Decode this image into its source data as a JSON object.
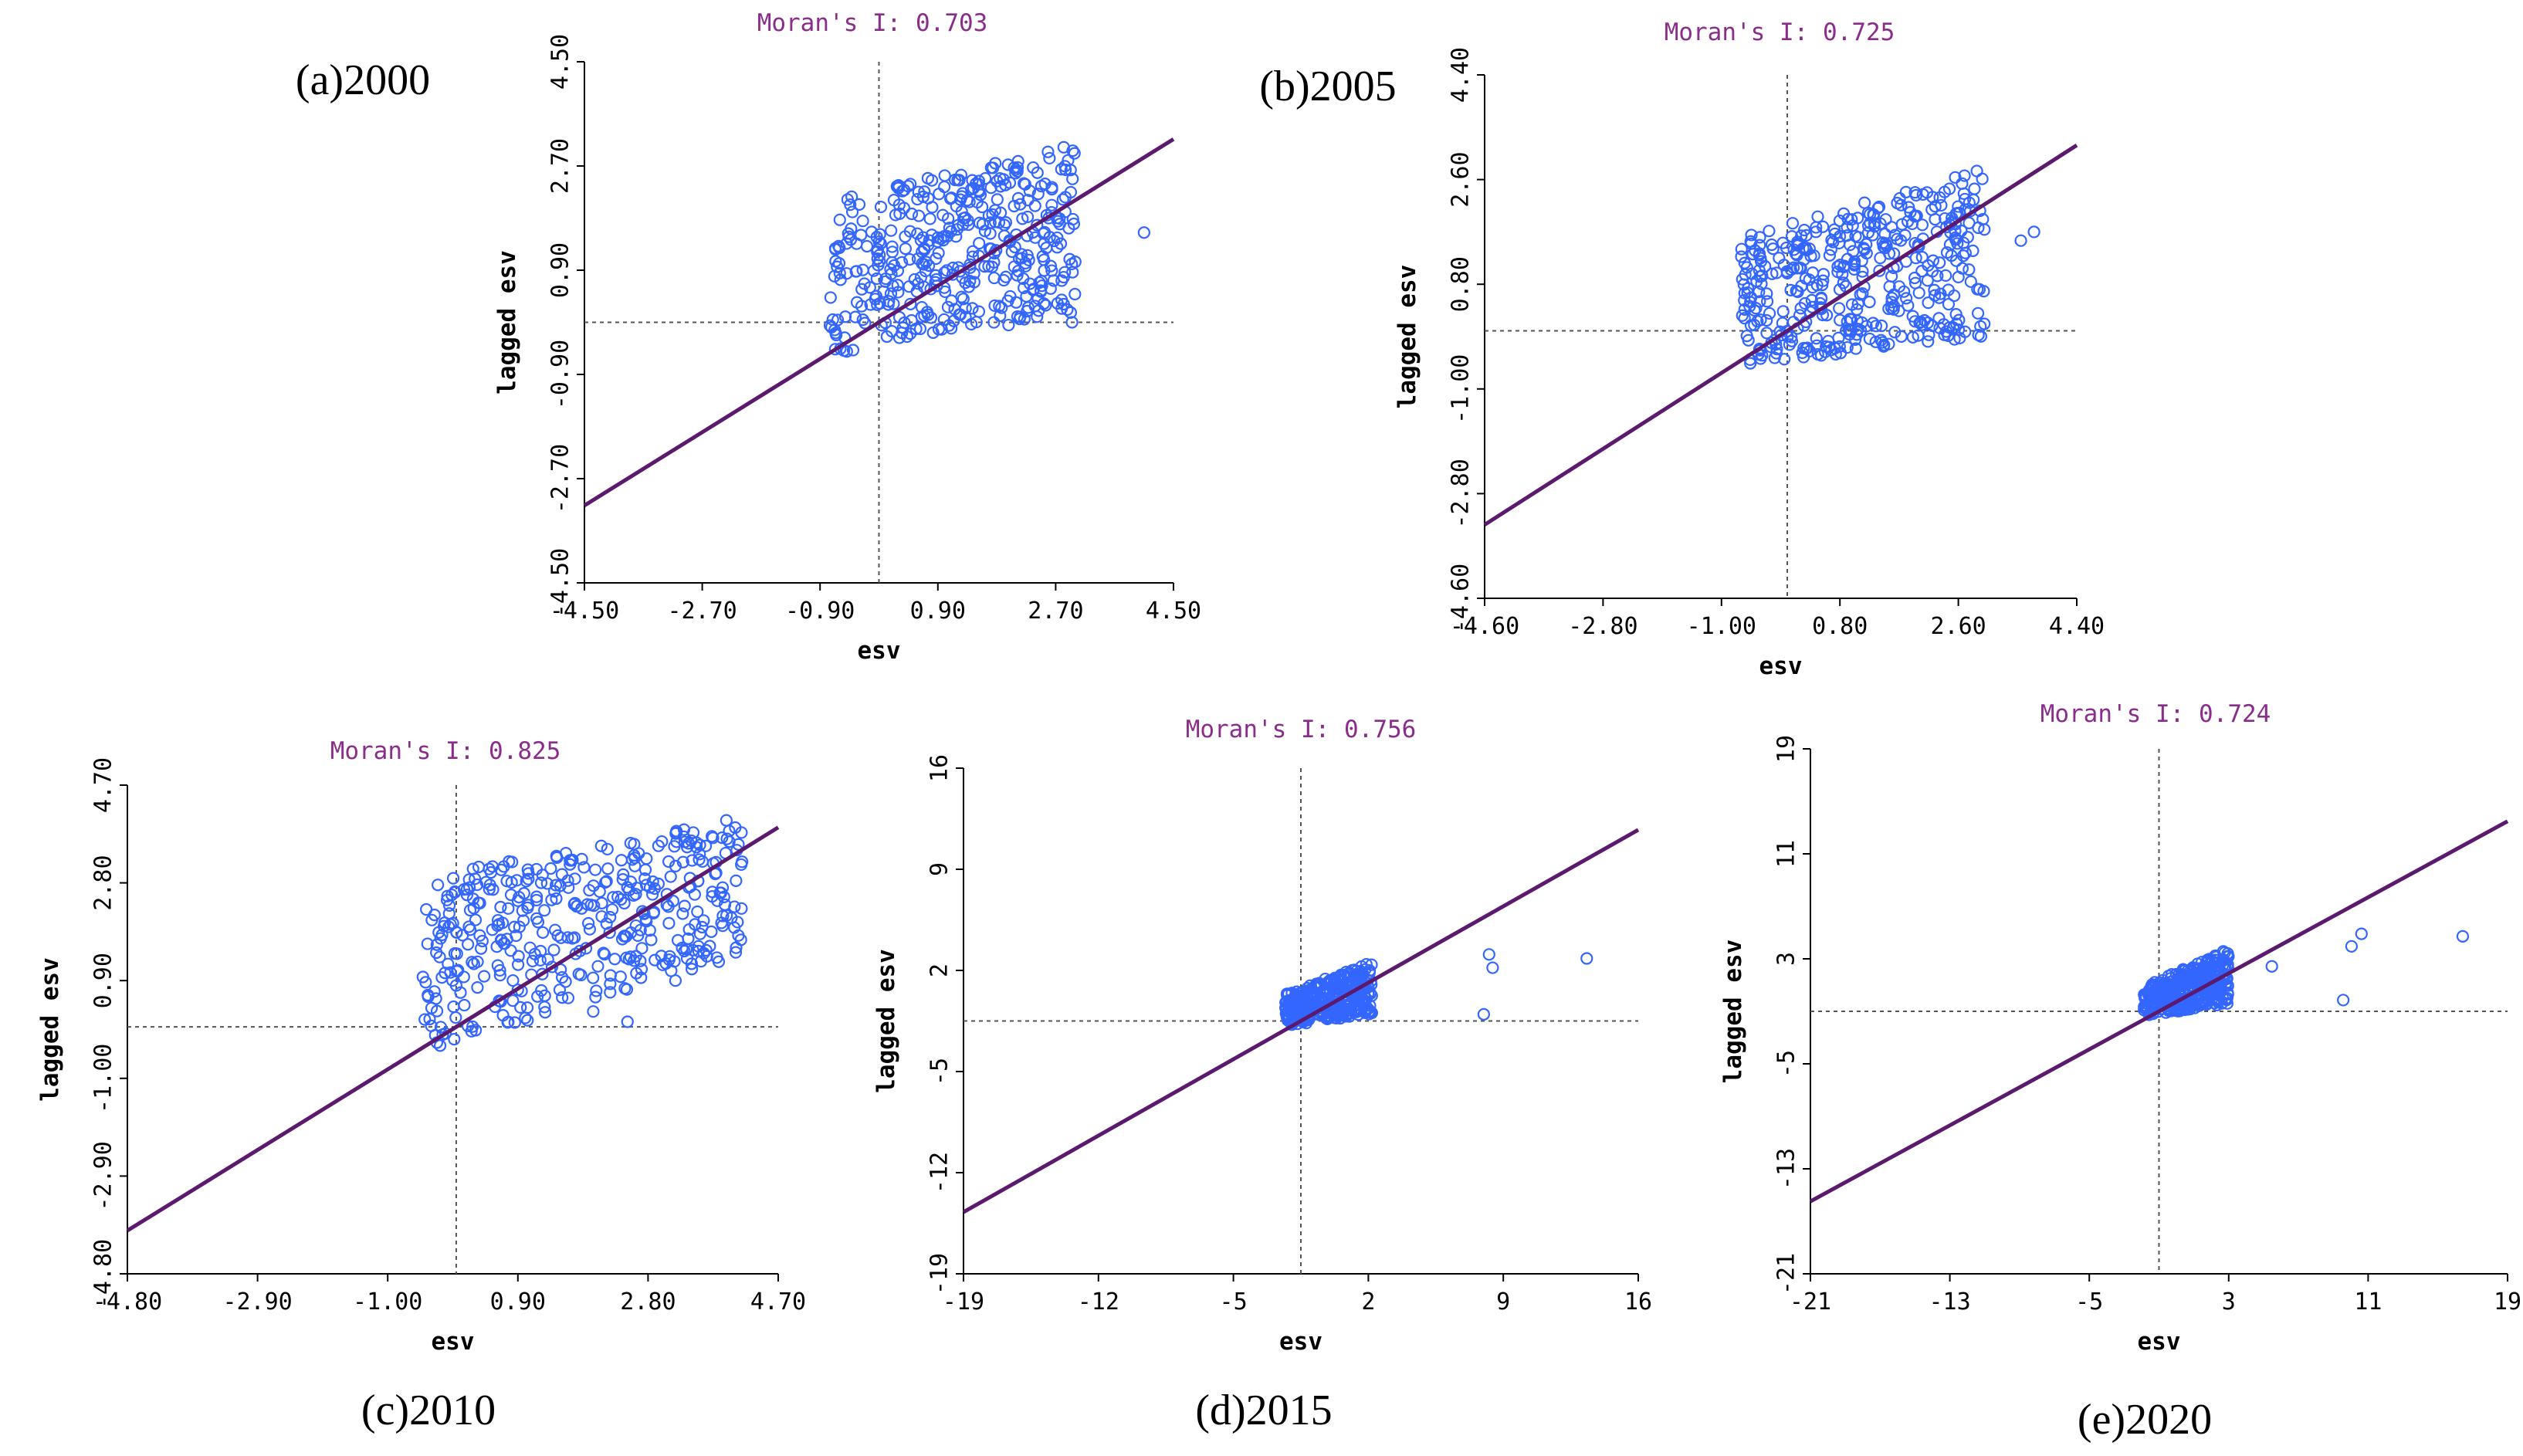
{
  "chart_data": [
    {
      "type": "scatter",
      "caption": "(a)2000",
      "title": "Moran's I: 0.703",
      "xlabel": "esv",
      "ylabel": "lagged esv",
      "xlim": [
        -4.5,
        4.5
      ],
      "ylim": [
        -4.5,
        4.5
      ],
      "xticks": [
        "-4.50",
        "-2.70",
        "-0.90",
        "0.90",
        "2.70",
        "4.50"
      ],
      "yticks": [
        "-4.50",
        "-2.70",
        "-0.90",
        "0.90",
        "2.70",
        "4.50"
      ],
      "slope": 0.703,
      "cluster": {
        "x_range": [
          -0.75,
          3.0
        ],
        "y_min": [
          -0.55,
          0.1
        ],
        "y_max": [
          2.1,
          3.1
        ],
        "count": 420,
        "seed": 11
      },
      "outliers": [
        [
          4.05,
          1.55
        ],
        [
          2.95,
          0.0
        ]
      ],
      "point_color": "#3366ff",
      "line_color": "#5c1a6e"
    },
    {
      "type": "scatter",
      "caption": "(b)2005",
      "title": "Moran's I: 0.725",
      "xlabel": "esv",
      "ylabel": "lagged esv",
      "xlim": [
        -4.6,
        4.4
      ],
      "ylim": [
        -4.6,
        4.4
      ],
      "xticks": [
        "-4.60",
        "-2.80",
        "-1.00",
        "0.80",
        "2.60",
        "4.40"
      ],
      "yticks": [
        "-4.60",
        "-2.80",
        "-1.00",
        "0.80",
        "2.60",
        "4.40"
      ],
      "slope": 0.725,
      "cluster": {
        "x_range": [
          -0.7,
          3.0
        ],
        "y_min": [
          -0.6,
          -0.1
        ],
        "y_max": [
          1.6,
          2.8
        ],
        "count": 420,
        "seed": 23
      },
      "outliers": [
        [
          3.55,
          1.55
        ],
        [
          3.75,
          1.7
        ]
      ],
      "point_color": "#3366ff",
      "line_color": "#5c1a6e"
    },
    {
      "type": "scatter",
      "caption": "(c)2010",
      "title": "Moran's I: 0.825",
      "xlabel": "esv",
      "ylabel": "lagged esv",
      "xlim": [
        -4.8,
        4.7
      ],
      "ylim": [
        -4.8,
        4.7
      ],
      "xticks": [
        "-4.80",
        "-2.90",
        "-1.00",
        "0.90",
        "2.80",
        "4.70"
      ],
      "yticks": [
        "-4.80",
        "-2.90",
        "-1.00",
        "0.90",
        "2.80",
        "4.70"
      ],
      "slope": 0.825,
      "cluster": {
        "x_range": [
          -0.5,
          4.2
        ],
        "y_min": [
          -0.5,
          1.4
        ],
        "y_max": [
          2.9,
          4.1
        ],
        "count": 420,
        "seed": 37
      },
      "outliers": [
        [
          2.0,
          0.3
        ],
        [
          2.5,
          0.1
        ],
        [
          3.2,
          0.9
        ]
      ],
      "point_color": "#3366ff",
      "line_color": "#5c1a6e"
    },
    {
      "type": "scatter",
      "caption": "(d)2015",
      "title": "Moran's I: 0.756",
      "xlabel": "esv",
      "ylabel": "lagged esv",
      "xlim": [
        -19,
        19
      ],
      "ylim": [
        -19,
        19
      ],
      "xticks": [
        "-19",
        "-12",
        "-5",
        "2",
        "9",
        "16"
      ],
      "yticks": [
        "-19",
        "-12",
        "-5",
        "2",
        "9",
        "16"
      ],
      "slope": 0.756,
      "cluster": {
        "x_range": [
          -0.9,
          4.0
        ],
        "y_min": [
          -0.4,
          0.5
        ],
        "y_max": [
          2.0,
          4.5
        ],
        "count": 380,
        "seed": 53
      },
      "outliers": [
        [
          10.6,
          5.0
        ],
        [
          10.8,
          4.0
        ],
        [
          16.1,
          4.7
        ],
        [
          10.3,
          0.5
        ]
      ],
      "point_color": "#3366ff",
      "line_color": "#5c1a6e"
    },
    {
      "type": "scatter",
      "caption": "(e)2020",
      "title": "Moran's I: 0.724",
      "xlabel": "esv",
      "ylabel": "lagged esv",
      "xlim": [
        -21,
        21
      ],
      "ylim": [
        -21,
        21
      ],
      "xticks": [
        "-21",
        "-13",
        "-5",
        "3",
        "11",
        "19"
      ],
      "yticks": [
        "-21",
        "-13",
        "-5",
        "3",
        "11",
        "19"
      ],
      "slope": 0.724,
      "cluster": {
        "x_range": [
          -0.9,
          4.2
        ],
        "y_min": [
          -0.4,
          0.6
        ],
        "y_max": [
          2.0,
          5.0
        ],
        "count": 380,
        "seed": 71
      },
      "outliers": [
        [
          12.2,
          6.2
        ],
        [
          11.6,
          5.2
        ],
        [
          18.3,
          6.0
        ],
        [
          6.8,
          3.6
        ],
        [
          11.1,
          0.9
        ]
      ],
      "point_color": "#3366ff",
      "line_color": "#5c1a6e"
    }
  ]
}
